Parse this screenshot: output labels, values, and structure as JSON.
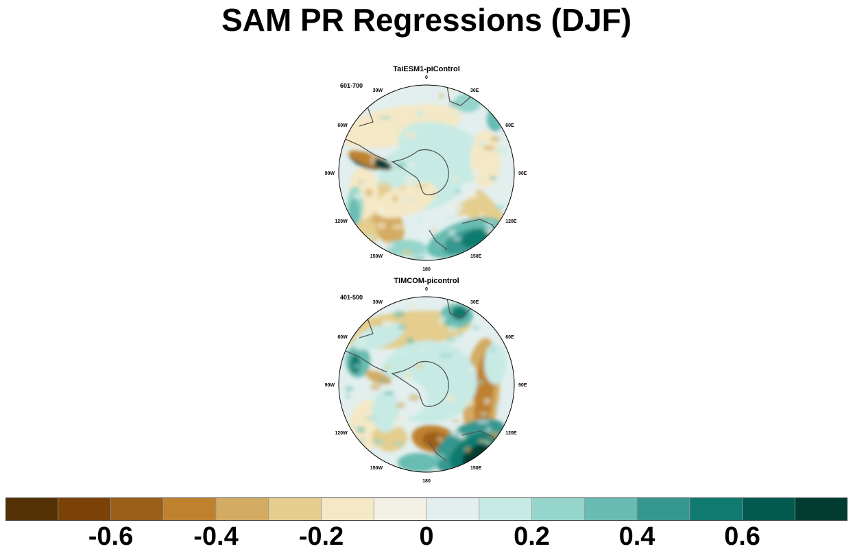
{
  "chart_data": {
    "type": "contour map",
    "title": "SAM PR Regressions (DJF)",
    "projection": "south polar stereographic",
    "panels": [
      {
        "name": "TaiESM1-piControl",
        "period": "601-700"
      },
      {
        "name": "TIMCOM-picontrol",
        "period": "401-500"
      }
    ],
    "longitude_labels": [
      "0",
      "30E",
      "60E",
      "90E",
      "120E",
      "150E",
      "180",
      "150W",
      "120W",
      "90W",
      "60W",
      "30W"
    ],
    "colorbar": {
      "levels": [
        -0.7,
        -0.6,
        -0.5,
        -0.4,
        -0.3,
        -0.2,
        -0.1,
        0,
        0.1,
        0.2,
        0.3,
        0.4,
        0.5,
        0.6,
        0.7
      ],
      "labels": [
        "-0.6",
        "-0.4",
        "-0.2",
        "0",
        "0.2",
        "0.4",
        "0.6"
      ],
      "colors": [
        "#543005",
        "#7a4207",
        "#9c5f1a",
        "#bf812d",
        "#d3ab62",
        "#e4cd8d",
        "#f4e8c6",
        "#f3f0e6",
        "#e2efee",
        "#c7eae4",
        "#95d5cb",
        "#68bcb1",
        "#35978f",
        "#117a70",
        "#01594f",
        "#003c30"
      ]
    }
  }
}
